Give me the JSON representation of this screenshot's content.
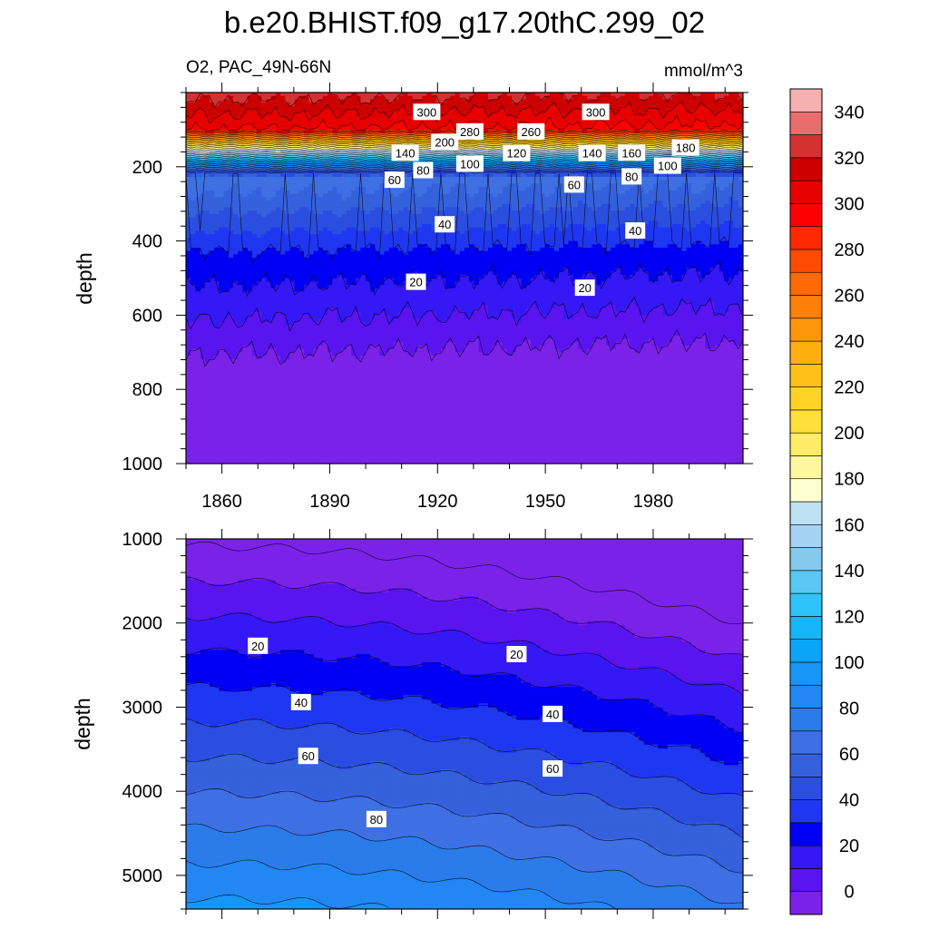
{
  "chart_data": {
    "type": "heatmap",
    "title": "b.e20.BHIST.f09_g17.20thC.299_02",
    "subtitle_left": "O2, PAC_49N-66N",
    "units": "mmol/m^3",
    "colorbar": {
      "levels": [
        0,
        10,
        20,
        30,
        40,
        50,
        60,
        70,
        80,
        90,
        100,
        110,
        120,
        130,
        140,
        150,
        160,
        170,
        180,
        190,
        200,
        210,
        220,
        230,
        240,
        250,
        260,
        270,
        280,
        290,
        300,
        310,
        320,
        330,
        340,
        350
      ],
      "tick_labels": [
        "0",
        "20",
        "40",
        "60",
        "80",
        "100",
        "120",
        "140",
        "160",
        "180",
        "200",
        "220",
        "240",
        "260",
        "280",
        "300",
        "320",
        "340"
      ],
      "colors": [
        "#7b22e8",
        "#5a14f0",
        "#3418f5",
        "#0000f5",
        "#1f37f0",
        "#2b4ee0",
        "#3561dd",
        "#3e70e3",
        "#2b7bea",
        "#2287f2",
        "#1896f7",
        "#0aa4f8",
        "#18b4f8",
        "#2ec4f9",
        "#5ac7f3",
        "#86c9ee",
        "#a4d2f2",
        "#bde0f4",
        "#feffd0",
        "#fff6a0",
        "#ffeb66",
        "#ffdf3a",
        "#ffd326",
        "#ffc018",
        "#ffae10",
        "#ff960a",
        "#ff7f08",
        "#ff6a05",
        "#ff4a03",
        "#ff2a01",
        "#ff0000",
        "#e60000",
        "#cc0000",
        "#d43232",
        "#e86e6e",
        "#f7b0b0"
      ]
    },
    "panels": [
      {
        "name": "upper",
        "xlim": [
          1850,
          2005
        ],
        "x_ticks": [
          1860,
          1890,
          1920,
          1950,
          1980
        ],
        "x_tick_labels": [
          "1860",
          "1890",
          "1920",
          "1950",
          "1980"
        ],
        "ylim": [
          0,
          1000
        ],
        "y_inverted": true,
        "y_ticks": [
          200,
          400,
          600,
          800,
          1000
        ],
        "y_tick_labels": [
          "200",
          "400",
          "600",
          "800",
          "1000"
        ],
        "ylabel": "depth",
        "contour_labels": [
          {
            "text": "300",
            "x": 1917,
            "y": 52
          },
          {
            "text": "300",
            "x": 1964,
            "y": 52
          },
          {
            "text": "280",
            "x": 1929,
            "y": 105
          },
          {
            "text": "260",
            "x": 1946,
            "y": 105
          },
          {
            "text": "200",
            "x": 1922,
            "y": 133
          },
          {
            "text": "180",
            "x": 1989,
            "y": 148
          },
          {
            "text": "140",
            "x": 1911,
            "y": 162
          },
          {
            "text": "140",
            "x": 1963,
            "y": 163
          },
          {
            "text": "160",
            "x": 1974,
            "y": 162
          },
          {
            "text": "120",
            "x": 1942,
            "y": 163
          },
          {
            "text": "100",
            "x": 1929,
            "y": 192
          },
          {
            "text": "100",
            "x": 1984,
            "y": 197
          },
          {
            "text": "80",
            "x": 1916,
            "y": 209
          },
          {
            "text": "80",
            "x": 1974,
            "y": 226
          },
          {
            "text": "60",
            "x": 1908,
            "y": 235
          },
          {
            "text": "60",
            "x": 1958,
            "y": 248
          },
          {
            "text": "40",
            "x": 1922,
            "y": 355
          },
          {
            "text": "40",
            "x": 1975,
            "y": 372
          },
          {
            "text": "20",
            "x": 1914,
            "y": 510
          },
          {
            "text": "20",
            "x": 1961,
            "y": 526
          }
        ]
      },
      {
        "name": "lower",
        "xlim": [
          1850,
          2005
        ],
        "x_ticks": [
          1860,
          1890,
          1920,
          1950,
          1980
        ],
        "x_tick_labels": [],
        "ylim": [
          1000,
          5400
        ],
        "y_inverted": true,
        "y_ticks": [
          1000,
          2000,
          3000,
          4000,
          5000
        ],
        "y_tick_labels": [
          "1000",
          "2000",
          "3000",
          "4000",
          "5000"
        ],
        "ylabel": "depth",
        "contour_labels": [
          {
            "text": "20",
            "x": 1870,
            "y": 2270
          },
          {
            "text": "20",
            "x": 1942,
            "y": 2370
          },
          {
            "text": "40",
            "x": 1882,
            "y": 2940
          },
          {
            "text": "40",
            "x": 1952,
            "y": 3080
          },
          {
            "text": "60",
            "x": 1884,
            "y": 3580
          },
          {
            "text": "60",
            "x": 1952,
            "y": 3730
          },
          {
            "text": "80",
            "x": 1903,
            "y": 4330
          }
        ]
      }
    ]
  }
}
